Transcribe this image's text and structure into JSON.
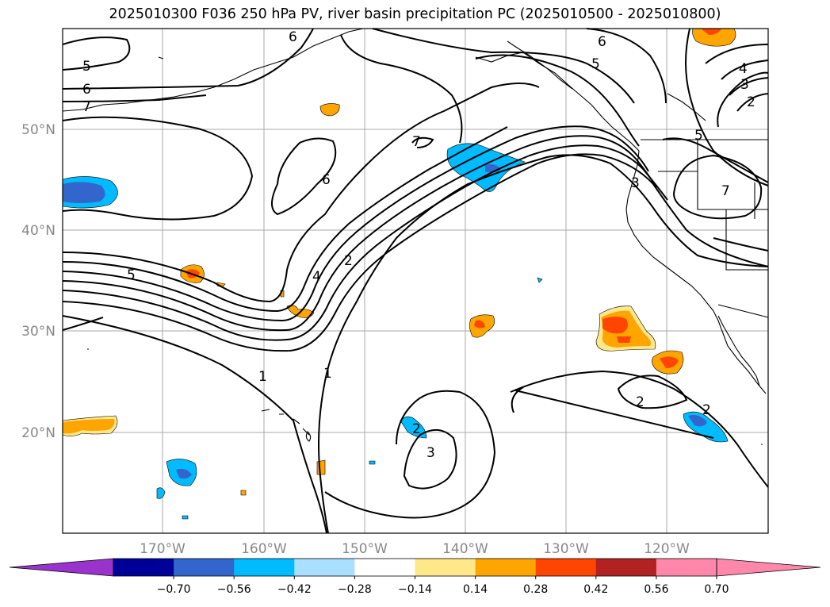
{
  "title": "2025010300 F036 250 hPa PV, river basin precipitation PC (2025010500 - 2025010800)",
  "lat_labels": [
    "50°N",
    "40°N",
    "30°N",
    "20°N"
  ],
  "lon_labels": [
    "170°W",
    "160°W",
    "150°W",
    "140°W",
    "130°W",
    "120°W"
  ],
  "pv_contour_labels": [
    "5",
    "6",
    "7",
    "6",
    "6",
    "5",
    "4",
    "3",
    "2",
    "5",
    "7",
    "6",
    "3",
    "7",
    "5",
    "4",
    "2",
    "1",
    "1",
    "2",
    "3",
    "2",
    "2"
  ],
  "colorbar": {
    "ticks": [
      "−0.70",
      "−0.56",
      "−0.42",
      "−0.28",
      "−0.14",
      "0.14",
      "0.28",
      "0.42",
      "0.56",
      "0.70"
    ],
    "colors": {
      "under": "#9933cc",
      "bins": [
        "#000099",
        "#3366cc",
        "#00bbff",
        "#aae0ff",
        "#ffffff",
        "#ffe88a",
        "#ffa500",
        "#ff4500",
        "#b22222",
        "#ff88aa"
      ],
      "over": "#ff88aa"
    }
  }
}
